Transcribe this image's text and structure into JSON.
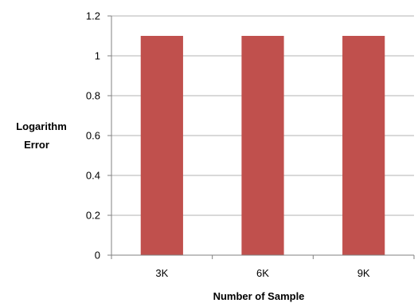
{
  "chart_data": {
    "type": "bar",
    "title": "",
    "xlabel": "Number of Sample",
    "ylabel_lines": [
      "Logarithm",
      "Error"
    ],
    "categories": [
      "3K",
      "6K",
      "9K"
    ],
    "values": [
      1.1,
      1.1,
      1.1
    ],
    "ylim": [
      0,
      1.2
    ],
    "yticks": [
      0,
      0.2,
      0.4,
      0.6,
      0.8,
      1,
      1.2
    ],
    "grid": true,
    "legend": "none",
    "bar_color": "#c0504d",
    "grid_color": "#b3b3b3"
  }
}
